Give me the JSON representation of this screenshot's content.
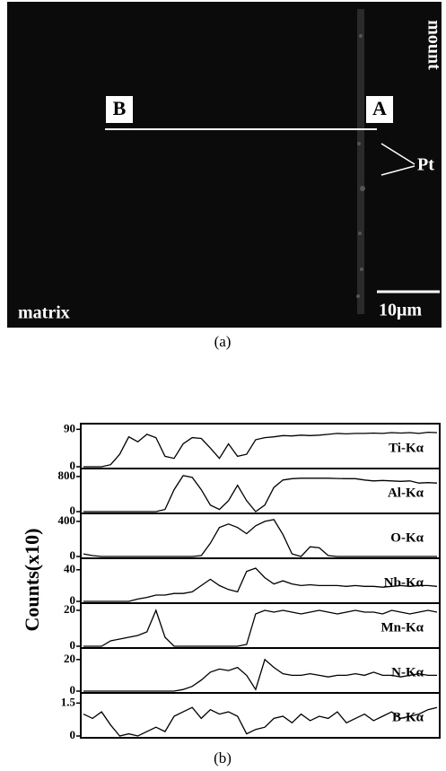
{
  "panel_a": {
    "point_b": "B",
    "point_a": "A",
    "mount": "mount",
    "pt": "Pt",
    "matrix": "matrix",
    "scale": "10μm",
    "caption": "(a)"
  },
  "panel_b": {
    "y_label": "Counts(x10)",
    "caption": "(b)"
  },
  "chart_data": [
    {
      "type": "line",
      "label": "Ti-Kα",
      "color": "#000000",
      "ylim": [
        0,
        95
      ],
      "yticks": [
        0,
        90
      ],
      "values": [
        0,
        0,
        0,
        5,
        30,
        72,
        60,
        78,
        70,
        25,
        20,
        55,
        70,
        68,
        45,
        20,
        55,
        25,
        30,
        65,
        70,
        72,
        75,
        74,
        76,
        75,
        76,
        78,
        80,
        79,
        80,
        80,
        81,
        80,
        82,
        81,
        82,
        80,
        83,
        82
      ]
    },
    {
      "type": "line",
      "label": "Al-Kα",
      "color": "#000000",
      "ylim": [
        0,
        900
      ],
      "yticks": [
        0,
        800
      ],
      "values": [
        0,
        0,
        0,
        0,
        0,
        0,
        0,
        0,
        0,
        50,
        500,
        820,
        780,
        500,
        150,
        50,
        250,
        600,
        250,
        0,
        150,
        550,
        720,
        750,
        760,
        760,
        760,
        760,
        755,
        750,
        750,
        720,
        700,
        710,
        700,
        690,
        700,
        650,
        660,
        650
      ]
    },
    {
      "type": "line",
      "label": "O-Kα",
      "color": "#000000",
      "ylim": [
        0,
        450
      ],
      "yticks": [
        0,
        400
      ],
      "values": [
        30,
        10,
        0,
        0,
        0,
        0,
        0,
        0,
        0,
        0,
        0,
        0,
        0,
        10,
        150,
        330,
        370,
        330,
        260,
        350,
        400,
        420,
        250,
        30,
        0,
        110,
        100,
        10,
        0,
        0,
        0,
        0,
        0,
        0,
        0,
        0,
        0,
        0,
        0,
        0
      ]
    },
    {
      "type": "line",
      "label": "Nb-Kα",
      "color": "#000000",
      "ylim": [
        0,
        50
      ],
      "yticks": [
        0,
        40
      ],
      "values": [
        0,
        0,
        0,
        0,
        0,
        0,
        3,
        5,
        8,
        8,
        10,
        10,
        12,
        20,
        28,
        20,
        15,
        12,
        38,
        42,
        30,
        22,
        26,
        22,
        20,
        21,
        20,
        20,
        20,
        19,
        20,
        19,
        19,
        18,
        19,
        20,
        19,
        20,
        20,
        19
      ]
    },
    {
      "type": "line",
      "label": "Mn-Kα",
      "color": "#000000",
      "ylim": [
        0,
        22
      ],
      "yticks": [
        0,
        20
      ],
      "values": [
        0,
        0,
        0,
        3,
        4,
        5,
        6,
        8,
        20,
        5,
        0,
        0,
        0,
        0,
        0,
        0,
        0,
        0,
        1,
        18,
        20,
        19,
        20,
        19,
        18,
        19,
        20,
        19,
        18,
        19,
        20,
        19,
        19,
        18,
        20,
        19,
        18,
        19,
        20,
        19
      ]
    },
    {
      "type": "line",
      "label": "N-Kα",
      "color": "#000000",
      "ylim": [
        0,
        25
      ],
      "yticks": [
        0,
        20
      ],
      "values": [
        0,
        0,
        0,
        0,
        0,
        0,
        0,
        0,
        0,
        0,
        0,
        1,
        3,
        7,
        12,
        14,
        13,
        15,
        10,
        1,
        20,
        15,
        11,
        10,
        10,
        11,
        10,
        9,
        10,
        10,
        11,
        10,
        12,
        10,
        10,
        9,
        10,
        11,
        10,
        10
      ]
    },
    {
      "type": "line",
      "label": "B-Kα",
      "color": "#000000",
      "ylim": [
        0,
        1.8
      ],
      "yticks": [
        0,
        1.5
      ],
      "values": [
        1.0,
        0.8,
        1.1,
        0.5,
        0.0,
        0.1,
        0.0,
        0.2,
        0.4,
        0.2,
        0.9,
        1.1,
        1.3,
        0.8,
        1.2,
        1.0,
        1.1,
        0.9,
        0.1,
        0.3,
        0.4,
        0.8,
        0.9,
        0.6,
        1.0,
        0.7,
        0.9,
        0.8,
        1.1,
        0.6,
        0.8,
        1.0,
        0.7,
        0.9,
        1.1,
        0.8,
        0.9,
        1.0,
        1.2,
        1.3
      ]
    }
  ]
}
